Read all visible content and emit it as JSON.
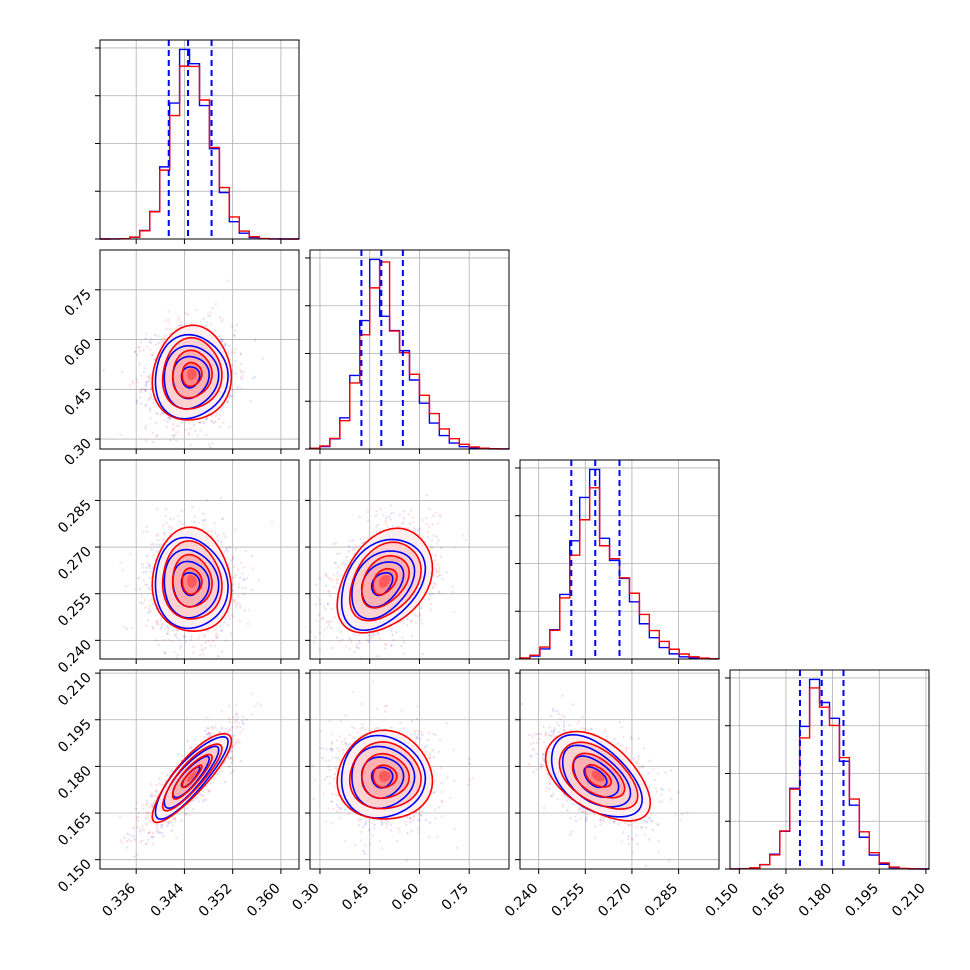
{
  "chart_data": {
    "type": "corner",
    "title": "",
    "legend": "none",
    "grid": true,
    "series": [
      {
        "color": "#0000ff"
      },
      {
        "color": "#ff0000"
      }
    ],
    "parameters": [
      {
        "xlim": [
          0.33,
          0.363
        ],
        "ticks": [
          0.336,
          0.344,
          0.352,
          0.36
        ],
        "tick_labels": [
          "0.336",
          "0.344",
          "0.352",
          "0.360"
        ],
        "quantiles": [
          0.3414,
          0.3446,
          0.3485
        ],
        "mean": [
          0.345,
          0.3452
        ],
        "sd": [
          0.0031,
          0.0032
        ]
      },
      {
        "xlim": [
          0.27,
          0.87
        ],
        "ticks": [
          0.3,
          0.45,
          0.6,
          0.75
        ],
        "tick_labels": [
          "0.30",
          "0.45",
          "0.60",
          "0.75"
        ],
        "quantiles": [
          0.425,
          0.485,
          0.55
        ],
        "mean": [
          0.487,
          0.495
        ],
        "sd": [
          0.065,
          0.07
        ]
      },
      {
        "xlim": [
          0.234,
          0.298
        ],
        "ticks": [
          0.24,
          0.255,
          0.27,
          0.285
        ],
        "tick_labels": [
          "0.240",
          "0.255",
          "0.270",
          "0.285"
        ],
        "quantiles": [
          0.2505,
          0.2582,
          0.266
        ],
        "mean": [
          0.2582,
          0.259
        ],
        "sd": [
          0.0075,
          0.0082
        ]
      },
      {
        "xlim": [
          0.147,
          0.211
        ],
        "ticks": [
          0.15,
          0.165,
          0.18,
          0.195,
          0.21
        ],
        "tick_labels": [
          "0.150",
          "0.165",
          "0.180",
          "0.195",
          "0.210"
        ],
        "quantiles": [
          0.1695,
          0.1765,
          0.1835
        ],
        "mean": [
          0.1765,
          0.1768
        ],
        "sd": [
          0.0068,
          0.007
        ]
      }
    ],
    "correlations": [
      [
        1.0,
        0.05,
        -0.05,
        0.85
      ],
      [
        0.05,
        1.0,
        0.35,
        0.0
      ],
      [
        -0.05,
        0.35,
        1.0,
        -0.5
      ],
      [
        0.85,
        0.0,
        -0.5,
        1.0
      ]
    ],
    "hist_bins": 20
  }
}
